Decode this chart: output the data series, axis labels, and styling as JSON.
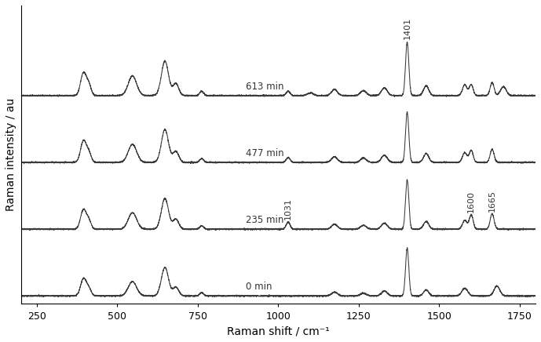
{
  "title": "",
  "xlabel": "Raman shift / cm⁻¹",
  "ylabel": "Raman intensity / au",
  "xmin": 200,
  "xmax": 1800,
  "spectra_labels": [
    "0 min",
    "235 min",
    "477 min",
    "613 min"
  ],
  "offsets": [
    0.0,
    1.0,
    2.0,
    3.0
  ],
  "line_color": "#3a3a3a",
  "background_color": "#ffffff",
  "tick_label_fontsize": 9,
  "axis_label_fontsize": 10
}
